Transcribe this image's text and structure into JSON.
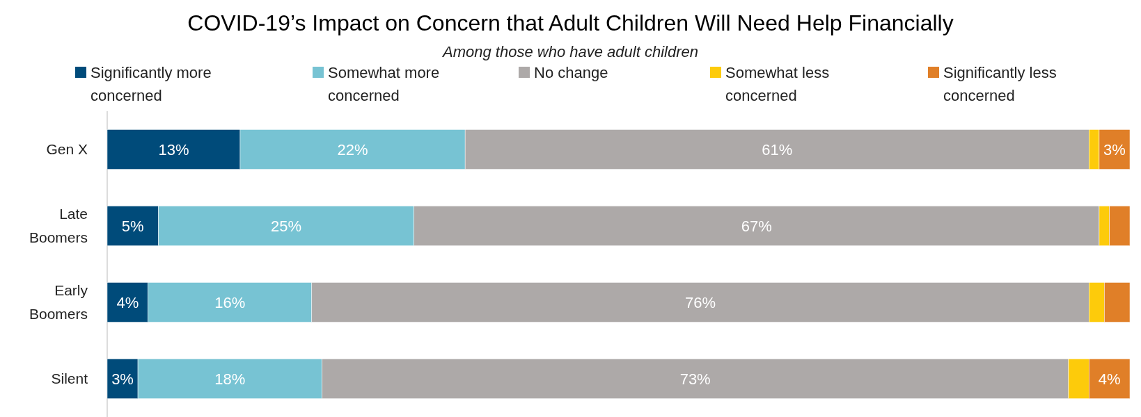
{
  "chart_data": {
    "type": "bar",
    "orientation": "horizontal",
    "stacked": true,
    "title": "COVID-19’s Impact on Concern that Adult Children Will Need Help Financially",
    "subtitle": "Among those who have adult children",
    "legend": "top",
    "categories": [
      "Gen X",
      "Late Boomers",
      "Early Boomers",
      "Silent"
    ],
    "series": [
      {
        "name": "Significantly more concerned",
        "color": "#004b7a",
        "values": [
          13,
          5,
          4,
          3
        ],
        "value_labels": [
          "13%",
          "5%",
          "4%",
          "3%"
        ]
      },
      {
        "name": "Somewhat more concerned",
        "color": "#77c3d3",
        "values": [
          22,
          25,
          16,
          18
        ],
        "value_labels": [
          "22%",
          "25%",
          "16%",
          "18%"
        ]
      },
      {
        "name": "No change",
        "color": "#ada9a8",
        "values": [
          61,
          67,
          76,
          73
        ],
        "value_labels": [
          "61%",
          "67%",
          "76%",
          "73%"
        ]
      },
      {
        "name": "Somewhat less concerned",
        "color": "#fdcb0b",
        "values": [
          1,
          1,
          1.5,
          2
        ],
        "value_labels": [
          null,
          null,
          null,
          null
        ]
      },
      {
        "name": "Significantly less concerned",
        "color": "#e07f28",
        "values": [
          3,
          2,
          2.5,
          4
        ],
        "value_labels": [
          "3%",
          null,
          null,
          "4%"
        ]
      }
    ]
  }
}
